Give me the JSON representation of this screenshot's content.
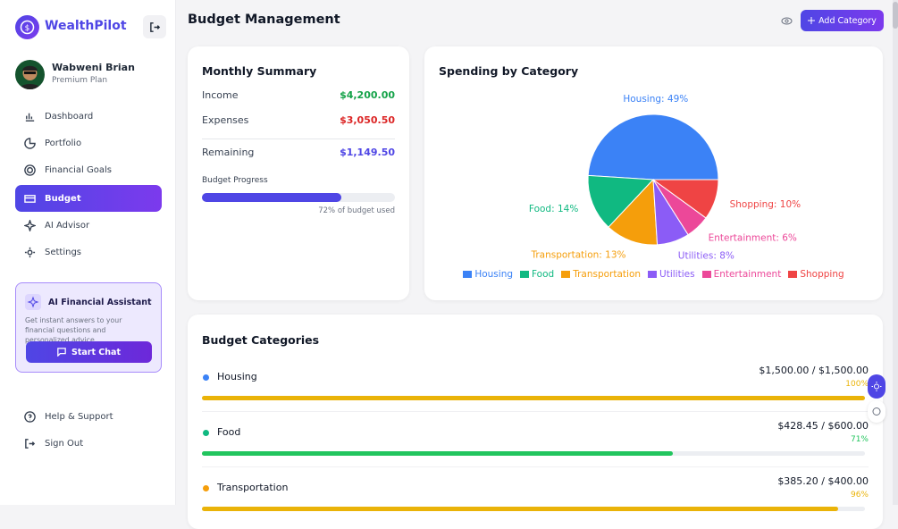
{
  "sidebar": {
    "brand": "WealthPilot",
    "user": {
      "name": "Wabweni Brian",
      "plan": "Premium Plan"
    },
    "nav": [
      "Dashboard",
      "Portfolio",
      "Financial Goals",
      "Budget",
      "AI Advisor",
      "Settings"
    ],
    "assistant": {
      "title": "AI Financial Assistant",
      "text": "Get instant answers to your financial questions and personalized advice.",
      "button": "Start Chat"
    },
    "footer": [
      "Help & Support",
      "Sign Out"
    ]
  },
  "header": {
    "title": "Budget Management",
    "button": "Add Category"
  },
  "summary": {
    "title": "Monthly Summary",
    "rows": [
      {
        "label": "Income",
        "value": "$4,200.00"
      },
      {
        "label": "Expenses",
        "value": "$3,050.50"
      },
      {
        "label": "Remaining",
        "value": "$1,149.50"
      }
    ],
    "progress": {
      "label": "Budget Progress",
      "value": 72,
      "value_label": "72% of budget used"
    }
  },
  "chart_data": {
    "type": "pie",
    "title": "Spending by Category",
    "categories": [
      "Housing",
      "Food",
      "Transportation",
      "Utilities",
      "Entertainment",
      "Shopping"
    ],
    "values": [
      49,
      14,
      13,
      8,
      6,
      10
    ],
    "value_labels": [
      "Housing: 49%",
      "Food: 14%",
      "Transportation: 13%",
      "Utilities: 8%",
      "Entertainment: 6%",
      "Shopping: 10%"
    ],
    "colors": [
      "#3b82f6",
      "#10b981",
      "#f59e0b",
      "#8b5cf6",
      "#ec4899",
      "#ef4444"
    ]
  },
  "budget": {
    "title": "Budget Categories",
    "items": [
      {
        "name": "Housing",
        "amount": "$1,500.00 / $1,500.00",
        "percent": 100,
        "percent_label": "100%",
        "dot": "#3b82f6",
        "bar": "#eab308"
      },
      {
        "name": "Food",
        "amount": "$428.45 / $600.00",
        "percent": 71,
        "percent_label": "71%",
        "dot": "#10b981",
        "bar": "#22c55e"
      },
      {
        "name": "Transportation",
        "amount": "$385.20 / $400.00",
        "percent": 96,
        "percent_label": "96%",
        "dot": "#f59e0b",
        "bar": "#eab308"
      }
    ]
  }
}
